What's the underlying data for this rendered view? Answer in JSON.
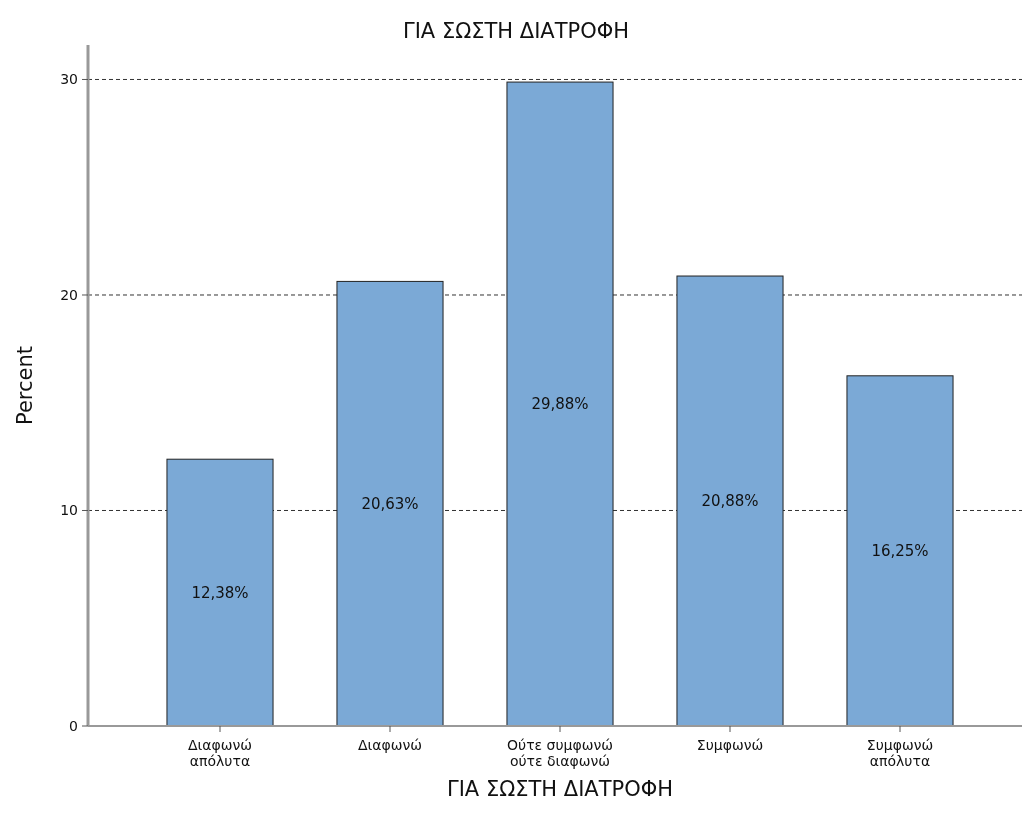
{
  "chart_data": {
    "type": "bar",
    "title": "ΓΙΑ ΣΩΣΤΗ ΔΙΑΤΡΟΦΗ",
    "xlabel": "ΓΙΑ ΣΩΣΤΗ ΔΙΑΤΡΟΦΗ",
    "ylabel": "Percent",
    "categories": [
      "Διαφωνώ απόλυτα",
      "Διαφωνώ",
      "Ούτε συμφωνώ ούτε διαφωνώ",
      "Συμφωνώ",
      "Συμφωνώ απόλυτα"
    ],
    "values": [
      12.38,
      20.63,
      29.88,
      20.88,
      16.25
    ],
    "value_labels": [
      "12,38%",
      "20,63%",
      "29,88%",
      "20,88%",
      "16,25%"
    ],
    "color": "#7ba9d6",
    "ylim": [
      0,
      31.6
    ],
    "yticks": [
      0,
      10,
      20,
      30
    ],
    "grid": "y"
  }
}
